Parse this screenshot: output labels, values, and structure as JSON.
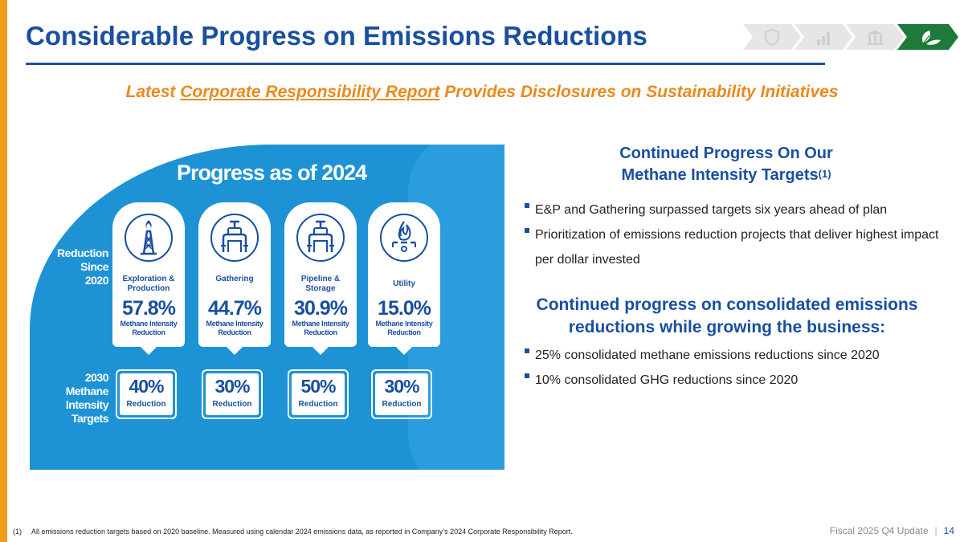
{
  "slide": {
    "title": "Considerable Progress on Emissions Reductions",
    "subtitle_pre": "Latest ",
    "subtitle_link": "Corporate Responsibility Report",
    "subtitle_post": " Provides Disclosures on Sustainability Initiatives"
  },
  "nav_chevrons": [
    {
      "icon": "shield-icon",
      "active": false
    },
    {
      "icon": "bar-chart-icon",
      "active": false
    },
    {
      "icon": "building-icon",
      "active": false
    },
    {
      "icon": "leaf-icon",
      "active": true
    }
  ],
  "infographic": {
    "title": "Progress as of 2024",
    "row1_label_a": "Reduction",
    "row1_label_b": "Since",
    "row1_label_c": "2020",
    "row2_label_a": "2030",
    "row2_label_b": "Methane",
    "row2_label_c": "Intensity",
    "row2_label_d": "Targets",
    "segments": [
      {
        "name_a": "Exploration &",
        "name_b": "Production",
        "icon": "oil-derrick-icon",
        "progress": "57.8%",
        "metric_a": "Methane Intensity",
        "metric_b": "Reduction",
        "target": "40%",
        "target_label": "Reduction"
      },
      {
        "name_a": "Gathering",
        "name_b": "",
        "icon": "pipeline-valve-icon",
        "progress": "44.7%",
        "metric_a": "Methane Intensity",
        "metric_b": "Reduction",
        "target": "30%",
        "target_label": "Reduction"
      },
      {
        "name_a": "Pipeline &",
        "name_b": "Storage",
        "icon": "storage-valve-icon",
        "progress": "30.9%",
        "metric_a": "Methane Intensity",
        "metric_b": "Reduction",
        "target": "50%",
        "target_label": "Reduction"
      },
      {
        "name_a": "Utility",
        "name_b": "",
        "icon": "gas-flame-icon",
        "progress": "15.0%",
        "metric_a": "Methane Intensity",
        "metric_b": "Reduction",
        "target": "30%",
        "target_label": "Reduction"
      }
    ]
  },
  "section1": {
    "title_line1": "Continued Progress On Our",
    "title_line2": "Methane Intensity Targets",
    "title_sup": "(1)",
    "bullets": [
      "E&P and Gathering surpassed targets six years ahead of plan",
      "Prioritization of emissions reduction projects that deliver highest impact per dollar invested"
    ]
  },
  "section2": {
    "title_line1": "Continued progress on consolidated emissions",
    "title_line2": "reductions while growing the business:",
    "bullets": [
      "25% consolidated methane emissions reductions since 2020",
      "10% consolidated GHG reductions since 2020"
    ]
  },
  "footer": {
    "footnote_num": "(1)",
    "footnote_text": "All emissions reduction targets based on 2020 baseline. Measured using calendar 2024 emissions data, as reported in Company’s 2024 Corporate Responsibility Report.",
    "deck": "Fiscal 2025 Q4 Update",
    "separator": "|",
    "page": "14"
  },
  "colors": {
    "brand_blue": "#1a4fa0",
    "accent_orange": "#e88a1e",
    "infographic_blue": "#1d93d6",
    "active_green": "#1e7a3a"
  }
}
